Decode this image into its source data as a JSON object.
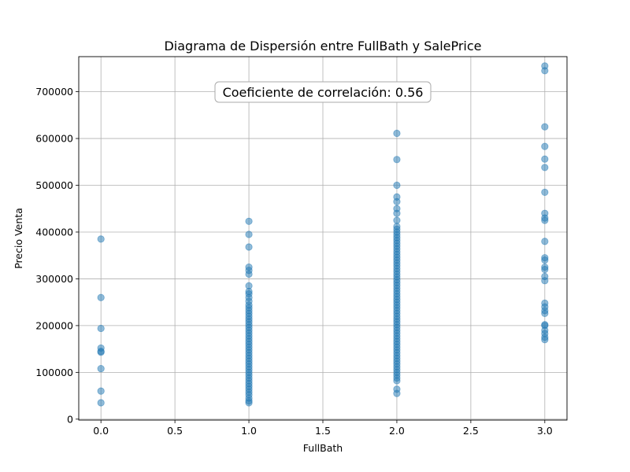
{
  "chart_data": {
    "type": "scatter",
    "title": "Diagrama de Dispersión entre FullBath y SalePrice",
    "xlabel": "FullBath",
    "ylabel": "Precio Venta",
    "xlim": [
      -0.15,
      3.15
    ],
    "ylim": [
      -2000,
      775000
    ],
    "x_ticks": [
      0.0,
      0.5,
      1.0,
      1.5,
      2.0,
      2.5,
      3.0
    ],
    "x_tick_labels": [
      "0.0",
      "0.5",
      "1.0",
      "1.5",
      "2.0",
      "2.5",
      "3.0"
    ],
    "y_ticks": [
      0,
      100000,
      200000,
      300000,
      400000,
      500000,
      600000,
      700000
    ],
    "y_tick_labels": [
      "0",
      "100000",
      "200000",
      "300000",
      "400000",
      "500000",
      "600000",
      "700000"
    ],
    "grid": true,
    "marker_color": "#1f77b4",
    "marker_alpha": 0.5,
    "annotation": "Coeficiente de correlación: 0.56",
    "series": [
      {
        "points": [
          [
            0,
            35000
          ],
          [
            0,
            60000
          ],
          [
            0,
            108000
          ],
          [
            0,
            143000
          ],
          [
            0,
            145000
          ],
          [
            0,
            152000
          ],
          [
            0,
            194000
          ],
          [
            0,
            260000
          ],
          [
            0,
            385000
          ],
          [
            1,
            35000
          ],
          [
            1,
            39000
          ],
          [
            1,
            45000
          ],
          [
            1,
            52000
          ],
          [
            1,
            58000
          ],
          [
            1,
            64000
          ],
          [
            1,
            70000
          ],
          [
            1,
            76000
          ],
          [
            1,
            82000
          ],
          [
            1,
            88000
          ],
          [
            1,
            94000
          ],
          [
            1,
            100000
          ],
          [
            1,
            106000
          ],
          [
            1,
            112000
          ],
          [
            1,
            118000
          ],
          [
            1,
            124000
          ],
          [
            1,
            130000
          ],
          [
            1,
            136000
          ],
          [
            1,
            142000
          ],
          [
            1,
            148000
          ],
          [
            1,
            154000
          ],
          [
            1,
            160000
          ],
          [
            1,
            166000
          ],
          [
            1,
            172000
          ],
          [
            1,
            178000
          ],
          [
            1,
            184000
          ],
          [
            1,
            190000
          ],
          [
            1,
            196000
          ],
          [
            1,
            202000
          ],
          [
            1,
            208000
          ],
          [
            1,
            214000
          ],
          [
            1,
            220000
          ],
          [
            1,
            226000
          ],
          [
            1,
            232000
          ],
          [
            1,
            238000
          ],
          [
            1,
            244000
          ],
          [
            1,
            252000
          ],
          [
            1,
            260000
          ],
          [
            1,
            268000
          ],
          [
            1,
            273000
          ],
          [
            1,
            285000
          ],
          [
            1,
            310000
          ],
          [
            1,
            318000
          ],
          [
            1,
            325000
          ],
          [
            1,
            368000
          ],
          [
            1,
            395000
          ],
          [
            1,
            423000
          ],
          [
            2,
            55000
          ],
          [
            2,
            64000
          ],
          [
            2,
            82000
          ],
          [
            2,
            88000
          ],
          [
            2,
            94000
          ],
          [
            2,
            100000
          ],
          [
            2,
            106000
          ],
          [
            2,
            112000
          ],
          [
            2,
            118000
          ],
          [
            2,
            124000
          ],
          [
            2,
            130000
          ],
          [
            2,
            136000
          ],
          [
            2,
            142000
          ],
          [
            2,
            148000
          ],
          [
            2,
            154000
          ],
          [
            2,
            160000
          ],
          [
            2,
            166000
          ],
          [
            2,
            172000
          ],
          [
            2,
            178000
          ],
          [
            2,
            184000
          ],
          [
            2,
            190000
          ],
          [
            2,
            196000
          ],
          [
            2,
            202000
          ],
          [
            2,
            208000
          ],
          [
            2,
            214000
          ],
          [
            2,
            220000
          ],
          [
            2,
            226000
          ],
          [
            2,
            232000
          ],
          [
            2,
            238000
          ],
          [
            2,
            244000
          ],
          [
            2,
            250000
          ],
          [
            2,
            256000
          ],
          [
            2,
            262000
          ],
          [
            2,
            268000
          ],
          [
            2,
            274000
          ],
          [
            2,
            280000
          ],
          [
            2,
            286000
          ],
          [
            2,
            292000
          ],
          [
            2,
            298000
          ],
          [
            2,
            304000
          ],
          [
            2,
            310000
          ],
          [
            2,
            316000
          ],
          [
            2,
            322000
          ],
          [
            2,
            328000
          ],
          [
            2,
            334000
          ],
          [
            2,
            340000
          ],
          [
            2,
            346000
          ],
          [
            2,
            352000
          ],
          [
            2,
            358000
          ],
          [
            2,
            364000
          ],
          [
            2,
            370000
          ],
          [
            2,
            376000
          ],
          [
            2,
            382000
          ],
          [
            2,
            388000
          ],
          [
            2,
            394000
          ],
          [
            2,
            400000
          ],
          [
            2,
            406000
          ],
          [
            2,
            412000
          ],
          [
            2,
            425000
          ],
          [
            2,
            440000
          ],
          [
            2,
            450000
          ],
          [
            2,
            465000
          ],
          [
            2,
            475000
          ],
          [
            2,
            500000
          ],
          [
            2,
            555000
          ],
          [
            2,
            611000
          ],
          [
            3,
            170000
          ],
          [
            3,
            175000
          ],
          [
            3,
            183000
          ],
          [
            3,
            190000
          ],
          [
            3,
            200000
          ],
          [
            3,
            202000
          ],
          [
            3,
            226000
          ],
          [
            3,
            232000
          ],
          [
            3,
            240000
          ],
          [
            3,
            248000
          ],
          [
            3,
            296000
          ],
          [
            3,
            305000
          ],
          [
            3,
            320000
          ],
          [
            3,
            325000
          ],
          [
            3,
            340000
          ],
          [
            3,
            345000
          ],
          [
            3,
            380000
          ],
          [
            3,
            425000
          ],
          [
            3,
            430000
          ],
          [
            3,
            440000
          ],
          [
            3,
            485000
          ],
          [
            3,
            538000
          ],
          [
            3,
            556000
          ],
          [
            3,
            583000
          ],
          [
            3,
            625000
          ],
          [
            3,
            745000
          ],
          [
            3,
            755000
          ]
        ]
      }
    ]
  }
}
